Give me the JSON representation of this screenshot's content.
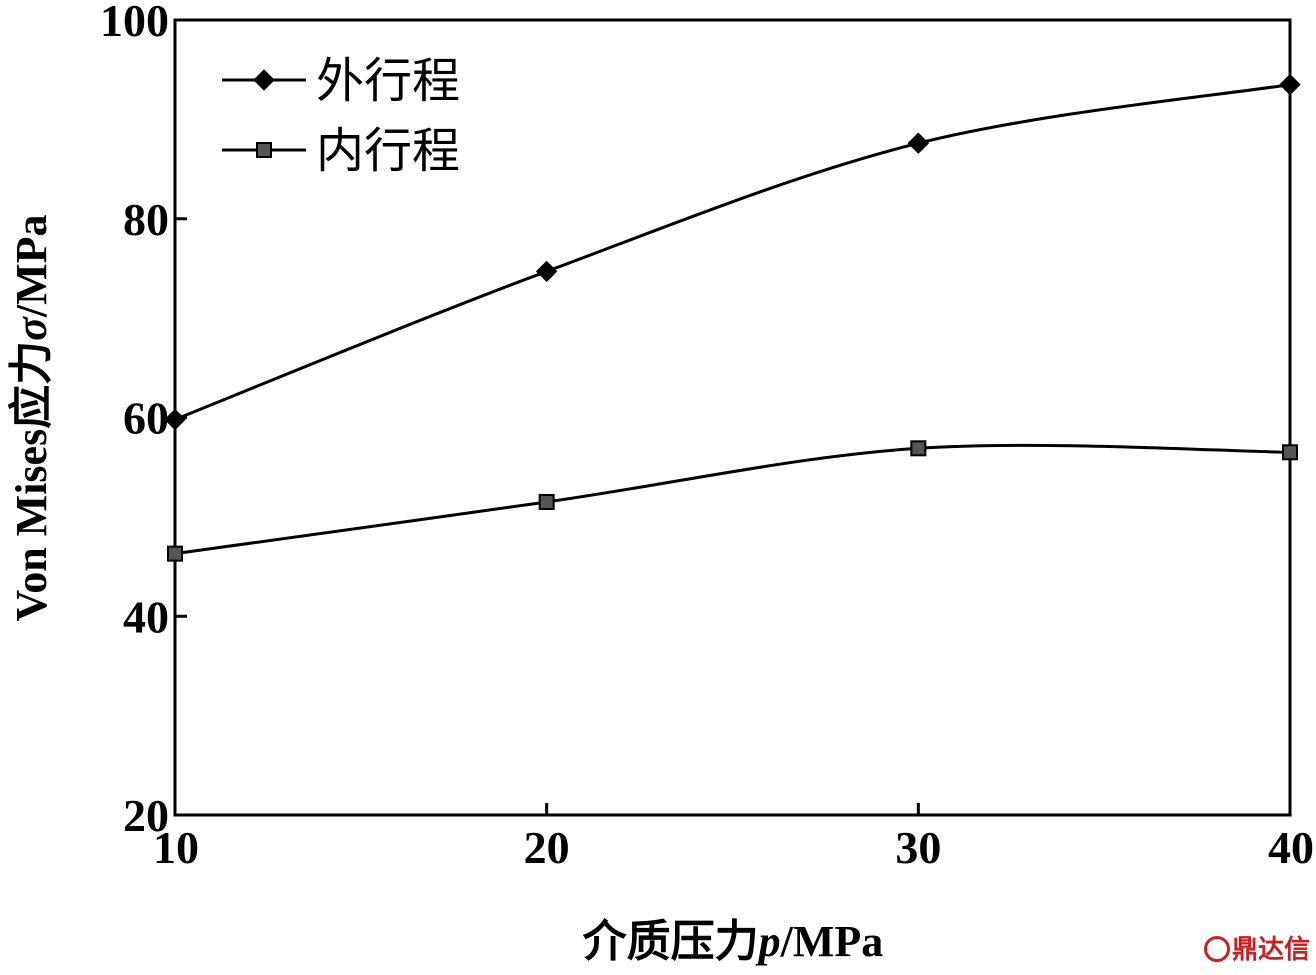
{
  "chart_data": {
    "type": "line",
    "x": [
      10,
      20,
      30,
      40
    ],
    "series": [
      {
        "name": "外行程",
        "values": [
          59.8,
          74.7,
          87.6,
          93.5
        ],
        "marker": "diamond",
        "marker_color": "#000000"
      },
      {
        "name": "内行程",
        "values": [
          46.3,
          51.5,
          56.9,
          56.5
        ],
        "marker": "square",
        "marker_color": "#555555"
      }
    ],
    "xlim": [
      10,
      40
    ],
    "ylim": [
      20,
      100
    ],
    "xticks": [
      "10",
      "20",
      "30",
      "40"
    ],
    "yticks": [
      "20",
      "40",
      "60",
      "80",
      "100"
    ],
    "xlabel_prefix": "介质压力",
    "xlabel_var": "p",
    "xlabel_unit": "/MPa",
    "ylabel_prefix": "Von Mises应力",
    "ylabel_var": "σ",
    "ylabel_unit": "/MPa",
    "legend_position": "top-left",
    "grid": false
  },
  "watermark": "鼎达信"
}
